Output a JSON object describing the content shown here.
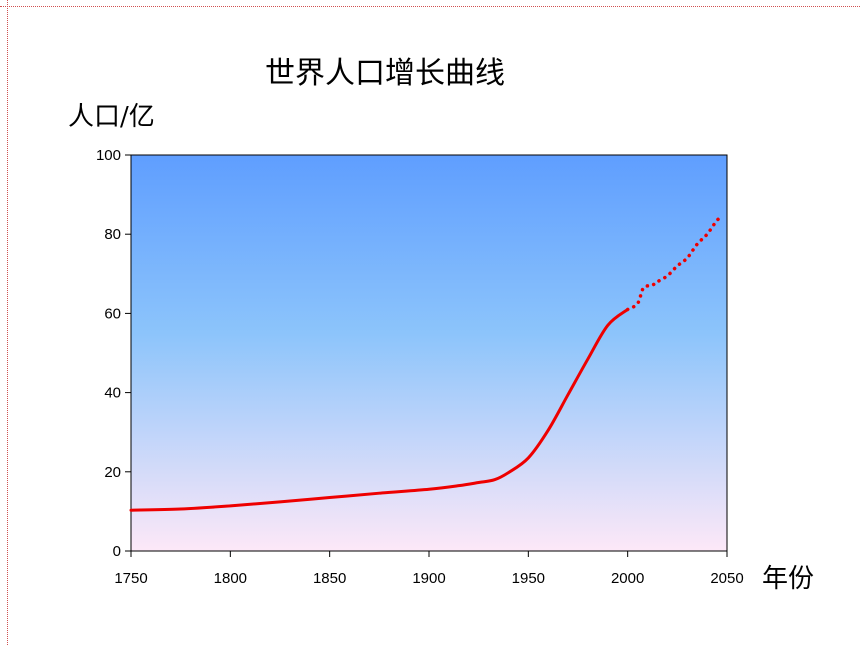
{
  "chart_data": {
    "type": "line",
    "title": "世界人口增长曲线",
    "ylabel": "人口/亿",
    "xlabel": "年份",
    "xlim": [
      1750,
      2050
    ],
    "ylim": [
      0,
      100
    ],
    "xticks": [
      "1750",
      "1800",
      "1850",
      "1900",
      "1950",
      "2000",
      "2050"
    ],
    "yticks": [
      "0",
      "20",
      "40",
      "60",
      "80",
      "100"
    ],
    "line_color": "#ee0000",
    "background_gradient": [
      "#5f9eff",
      "#fde8f8"
    ],
    "series": [
      {
        "style": "solid",
        "x": [
          1750,
          1775,
          1800,
          1825,
          1850,
          1875,
          1900,
          1915,
          1925,
          1933,
          1940,
          1950,
          1960,
          1970,
          1980,
          1990,
          2000
        ],
        "y": [
          10.3,
          10.6,
          11.4,
          12.4,
          13.5,
          14.6,
          15.6,
          16.5,
          17.3,
          18.0,
          19.8,
          23.5,
          30.5,
          39.5,
          48.5,
          57.0,
          61.0
        ]
      },
      {
        "style": "dotted",
        "x": [
          2000,
          2005,
          2008,
          2012,
          2015,
          2020,
          2025,
          2030,
          2035,
          2040,
          2045,
          2048
        ],
        "y": [
          61.0,
          62.5,
          66.5,
          67.0,
          68.0,
          69.5,
          72.0,
          74.0,
          77.5,
          80.0,
          83.5,
          84.5
        ]
      }
    ]
  }
}
